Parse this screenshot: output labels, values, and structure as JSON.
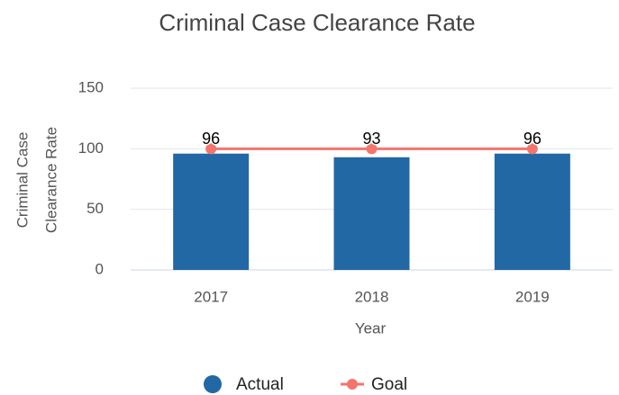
{
  "chart_data": {
    "type": "bar",
    "title": "Criminal Case Clearance Rate",
    "x_label": "Year",
    "y_label": [
      "Criminal Case",
      "Clearance Rate"
    ],
    "categories": [
      "2017",
      "2018",
      "2019"
    ],
    "series": [
      {
        "name": "Actual",
        "type": "bar",
        "color": "#2268a5",
        "values": [
          96,
          93,
          96
        ]
      },
      {
        "name": "Goal",
        "type": "line",
        "color": "#f4756b",
        "values": [
          100,
          100,
          100
        ]
      }
    ],
    "ylim": [
      0,
      150
    ],
    "yticks": [
      0,
      50,
      100,
      150
    ],
    "grid": true
  }
}
